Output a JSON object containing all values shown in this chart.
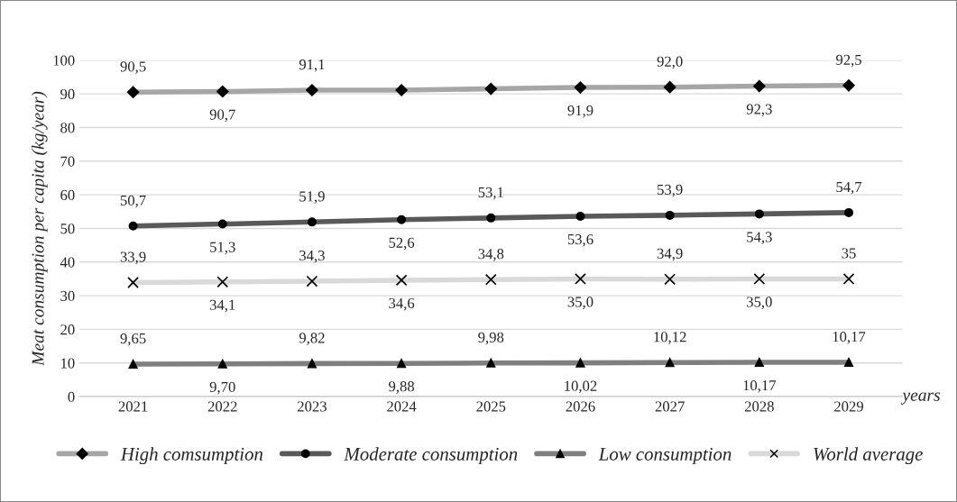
{
  "chart_data": {
    "type": "line",
    "ylabel": "Meat consumption per capita (kg/year)",
    "xlabel": "years",
    "categories": [
      "2021",
      "2022",
      "2023",
      "2024",
      "2025",
      "2026",
      "2027",
      "2028",
      "2029"
    ],
    "ylim": [
      0,
      100
    ],
    "yticks": [
      0,
      10,
      20,
      30,
      40,
      50,
      60,
      70,
      80,
      90,
      100
    ],
    "grid": "y",
    "legend": "bottom",
    "line_style": "solid",
    "series": [
      {
        "name": "High comsumption",
        "color": "#a6a6a6",
        "marker": "diamond",
        "values": [
          90.5,
          90.7,
          91.1,
          91.1,
          91.5,
          91.9,
          92.0,
          92.3,
          92.5
        ],
        "value_labels": [
          "90,5",
          "90,7",
          "91,1",
          null,
          null,
          "91,9",
          "92,0",
          "92,3",
          "92,5"
        ]
      },
      {
        "name": "Moderate consumption",
        "color": "#595959",
        "marker": "circle",
        "values": [
          50.7,
          51.3,
          51.9,
          52.6,
          53.1,
          53.6,
          53.9,
          54.3,
          54.7
        ],
        "value_labels": [
          "50,7",
          "51,3",
          "51,9",
          "52,6",
          "53,1",
          "53,6",
          "53,9",
          "54,3",
          "54,7"
        ]
      },
      {
        "name": "Low consumption",
        "color": "#7f7f7f",
        "marker": "triangle",
        "values": [
          9.65,
          9.7,
          9.82,
          9.88,
          9.98,
          10.02,
          10.12,
          10.17,
          10.17
        ],
        "value_labels": [
          "9,65",
          "9,70",
          "9,82",
          "9,88",
          "9,98",
          "10,02",
          "10,12",
          "10,17",
          "10,17"
        ]
      },
      {
        "name": "World average",
        "color": "#d9d9d9",
        "marker": "cross",
        "values": [
          33.9,
          34.1,
          34.3,
          34.6,
          34.8,
          35.0,
          34.9,
          35.0,
          35
        ],
        "value_labels": [
          "33,9",
          "34,1",
          "34,3",
          "34,6",
          "34,8",
          "35,0",
          "34,9",
          "35,0",
          "35"
        ]
      }
    ]
  }
}
